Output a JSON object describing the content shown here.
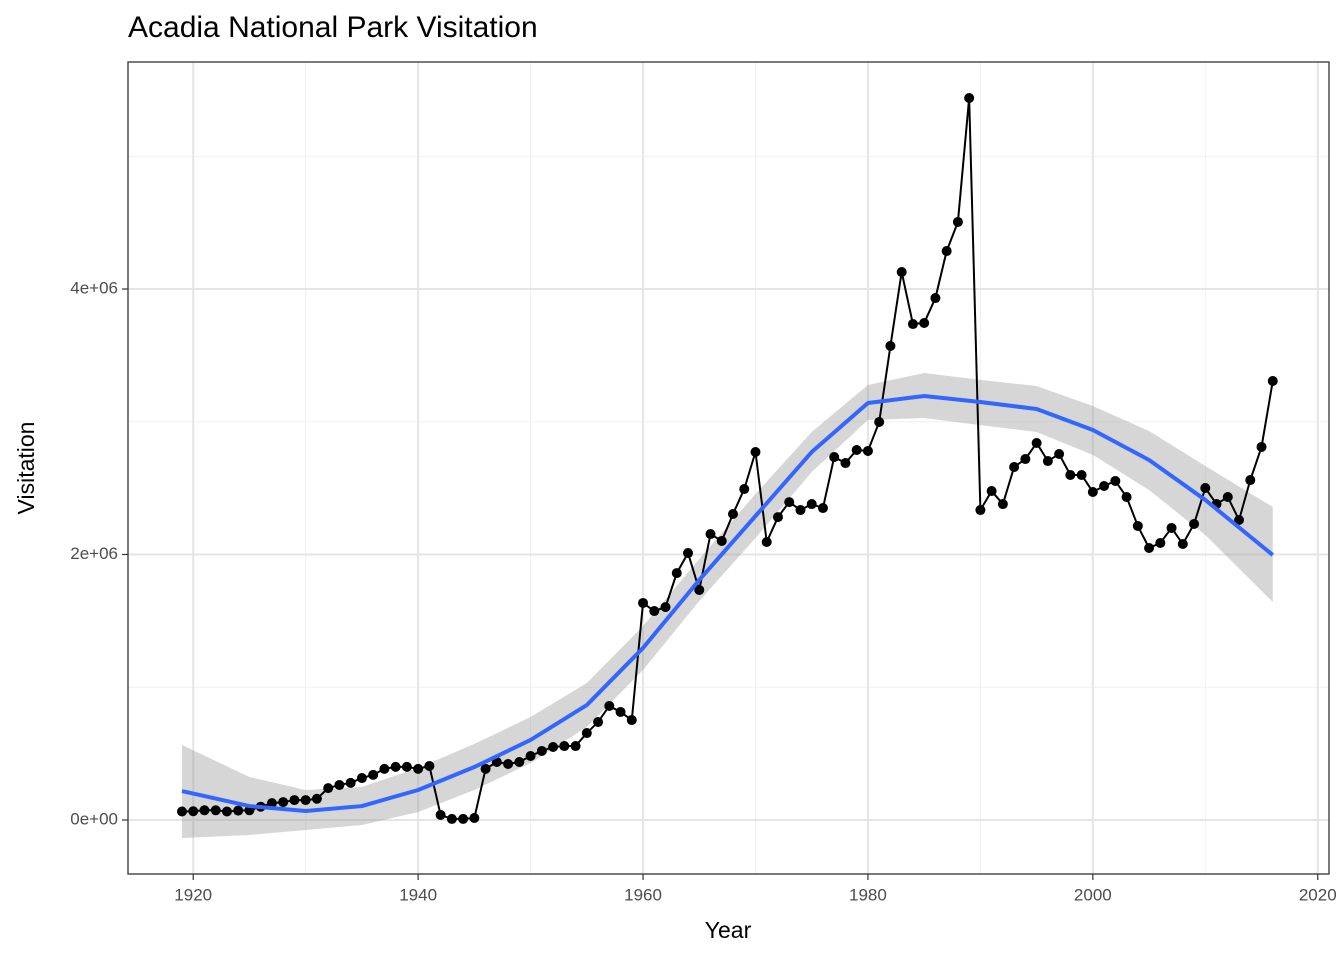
{
  "chart_data": {
    "type": "line",
    "title": "Acadia National Park Visitation",
    "x_label": "Year",
    "y_label": "Visitation",
    "x": [
      1919,
      1920,
      1921,
      1922,
      1923,
      1924,
      1925,
      1926,
      1927,
      1928,
      1929,
      1930,
      1931,
      1932,
      1933,
      1934,
      1935,
      1936,
      1937,
      1938,
      1939,
      1940,
      1941,
      1942,
      1943,
      1944,
      1945,
      1946,
      1947,
      1948,
      1949,
      1950,
      1951,
      1952,
      1953,
      1954,
      1955,
      1956,
      1957,
      1958,
      1959,
      1960,
      1961,
      1962,
      1963,
      1964,
      1965,
      1966,
      1967,
      1968,
      1969,
      1970,
      1971,
      1972,
      1973,
      1974,
      1975,
      1976,
      1977,
      1978,
      1979,
      1980,
      1981,
      1982,
      1983,
      1984,
      1985,
      1986,
      1987,
      1988,
      1989,
      1990,
      1991,
      1992,
      1993,
      1994,
      1995,
      1996,
      1997,
      1998,
      1999,
      2000,
      2001,
      2002,
      2003,
      2004,
      2005,
      2006,
      2007,
      2008,
      2009,
      2010,
      2011,
      2012,
      2013,
      2014,
      2015,
      2016
    ],
    "series": [
      {
        "color": "#000000",
        "markers": true,
        "values": [
          64000,
          66000,
          73000,
          73000,
          64000,
          71000,
          73000,
          100000,
          127000,
          135000,
          150000,
          150000,
          160000,
          240000,
          264000,
          280000,
          316000,
          340000,
          385000,
          400000,
          400000,
          385000,
          407000,
          38000,
          8000,
          8000,
          15000,
          385000,
          437000,
          422000,
          437000,
          482000,
          520000,
          550000,
          557000,
          557000,
          655000,
          738000,
          859000,
          814000,
          753000,
          1635000,
          1574000,
          1604000,
          1860000,
          2011000,
          1733000,
          2154000,
          2102000,
          2305000,
          2493000,
          2772000,
          2094000,
          2282000,
          2395000,
          2335000,
          2380000,
          2350000,
          2734000,
          2689000,
          2787000,
          2780000,
          2998000,
          3571000,
          4128000,
          3736000,
          3744000,
          3932000,
          4286000,
          4505000,
          5439000,
          2335000,
          2478000,
          2380000,
          2659000,
          2719000,
          2840000,
          2704000,
          2757000,
          2599000,
          2599000,
          2471000,
          2516000,
          2554000,
          2433000,
          2215000,
          2049000,
          2087000,
          2200000,
          2079000,
          2230000,
          2501000,
          2380000,
          2433000,
          2260000,
          2561000,
          2810000,
          3307000
        ]
      }
    ],
    "smooth": {
      "color": "#3366ff",
      "band_color": "#999999",
      "x": [
        1919,
        1925,
        1930,
        1935,
        1940,
        1945,
        1950,
        1955,
        1960,
        1965,
        1970,
        1975,
        1980,
        1985,
        1990,
        1995,
        2000,
        2005,
        2010,
        2016
      ],
      "fit": [
        218000,
        105000,
        68000,
        105000,
        226000,
        399000,
        603000,
        866000,
        1296000,
        1808000,
        2290000,
        2772000,
        3141000,
        3194000,
        3149000,
        3096000,
        2938000,
        2712000,
        2411000,
        1996000
      ],
      "lower": [
        -136000,
        -113000,
        -75000,
        -38000,
        60000,
        226000,
        429000,
        701000,
        1130000,
        1650000,
        2124000,
        2621000,
        3013000,
        3028000,
        2975000,
        2923000,
        2750000,
        2486000,
        2147000,
        1642000
      ],
      "upper": [
        565000,
        324000,
        226000,
        249000,
        392000,
        573000,
        776000,
        1032000,
        1461000,
        1966000,
        2456000,
        2923000,
        3277000,
        3367000,
        3315000,
        3269000,
        3119000,
        2930000,
        2667000,
        2358000
      ]
    },
    "xlim": [
      1914.2,
      2021.0
    ],
    "ylim": [
      -406800,
      5710000
    ],
    "xticks": [
      1920,
      1940,
      1960,
      1980,
      2000,
      2020
    ],
    "yticks": [
      {
        "value": 0,
        "label": "0e+00"
      },
      {
        "value": 2000000,
        "label": "2e+06"
      },
      {
        "value": 4000000,
        "label": "4e+06"
      }
    ],
    "xminor": [
      1930,
      1950,
      1970,
      1990,
      2010
    ],
    "yminor": [
      1000000,
      3000000,
      5000000
    ],
    "grid": true
  }
}
